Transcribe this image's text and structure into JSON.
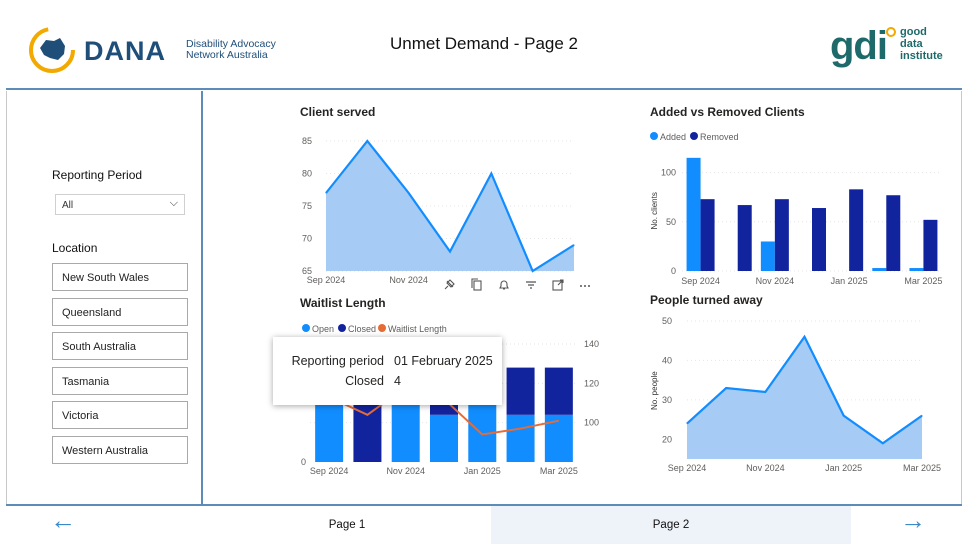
{
  "header": {
    "title": "Unmet Demand - Page 2",
    "dana_logo": {
      "word": "DANA",
      "line1": "Disability Advocacy",
      "line2": "Network Australia"
    },
    "gdi_logo": {
      "word": "gdi",
      "line1": "good",
      "line2": "data",
      "line3": "institute"
    }
  },
  "filters": {
    "reporting_period_label": "Reporting Period",
    "reporting_period_value": "All",
    "location_label": "Location",
    "locations": [
      "New South Wales",
      "Queensland",
      "South Australia",
      "Tasmania",
      "Victoria",
      "Western Australia"
    ]
  },
  "tooltip": {
    "key1": "Reporting period",
    "val1": "01 February 2025",
    "key2": "Closed",
    "val2": "4"
  },
  "footer": {
    "page1": "Page 1",
    "page2": "Page 2"
  },
  "colors": {
    "accent": "#118dff",
    "dark": "#12239e",
    "area": "#a6cbf5",
    "orange": "#e66c37",
    "rule": "#5b8db8"
  },
  "chart_data": [
    {
      "id": "client_served",
      "type": "area",
      "title": "Client served",
      "x": [
        "Sep 2024",
        "Oct 2024",
        "Nov 2024",
        "Dec 2024",
        "Jan 2025",
        "Feb 2025",
        "Mar 2025"
      ],
      "xticks": [
        "Sep 2024",
        "Nov 2024"
      ],
      "values": [
        77,
        85,
        77,
        68,
        80,
        65,
        69
      ],
      "ylim": [
        65,
        87
      ],
      "yticks": [
        65,
        70,
        75,
        80,
        85
      ]
    },
    {
      "id": "added_removed",
      "type": "bar",
      "title": "Added vs Removed Clients",
      "ylabel": "No. clients",
      "categories": [
        "Sep 2024",
        "Oct 2024",
        "Nov 2024",
        "Dec 2024",
        "Jan 2025",
        "Feb 2025",
        "Mar 2025"
      ],
      "xticks": [
        "Sep 2024",
        "Nov 2024",
        "Jan 2025",
        "Mar 2025"
      ],
      "series": [
        {
          "name": "Added",
          "values": [
            115,
            0,
            30,
            0,
            0,
            3,
            3
          ]
        },
        {
          "name": "Removed",
          "values": [
            73,
            67,
            73,
            64,
            83,
            77,
            52
          ]
        }
      ],
      "ylim": [
        0,
        125
      ],
      "yticks": [
        0,
        50,
        100
      ]
    },
    {
      "id": "waitlist_length",
      "type": "bar",
      "title": "Waitlist Length",
      "categories": [
        "Sep 2024",
        "Oct 2024",
        "Nov 2024",
        "Dec 2024",
        "Jan 2025",
        "Feb 2025",
        "Mar 2025"
      ],
      "xticks": [
        "Sep 2024",
        "Nov 2024",
        "Jan 2025",
        "Mar 2025"
      ],
      "series": [
        {
          "name": "Open",
          "values": [
            5,
            0,
            5,
            4,
            5,
            4,
            4
          ]
        },
        {
          "name": "Closed",
          "values": [
            2,
            7,
            2,
            3,
            2,
            4,
            4
          ]
        },
        {
          "name": "Waitlist Length",
          "values": [
            113,
            104,
            118,
            112,
            94,
            97,
            101
          ]
        }
      ],
      "ylim_left": [
        0,
        10
      ],
      "yticks_left": [
        0
      ],
      "ylim_right": [
        80,
        140
      ],
      "yticks_right": [
        100,
        120,
        140
      ]
    },
    {
      "id": "people_turned_away",
      "type": "area",
      "title": "People turned away",
      "ylabel": "No. people",
      "x": [
        "Sep 2024",
        "Oct 2024",
        "Nov 2024",
        "Dec 2024",
        "Jan 2025",
        "Feb 2025",
        "Mar 2025"
      ],
      "xticks": [
        "Sep 2024",
        "Nov 2024",
        "Jan 2025",
        "Mar 2025"
      ],
      "values": [
        24,
        33,
        32,
        46,
        26,
        19,
        26
      ],
      "ylim": [
        15,
        50
      ],
      "yticks": [
        20,
        30,
        40,
        50
      ]
    }
  ]
}
